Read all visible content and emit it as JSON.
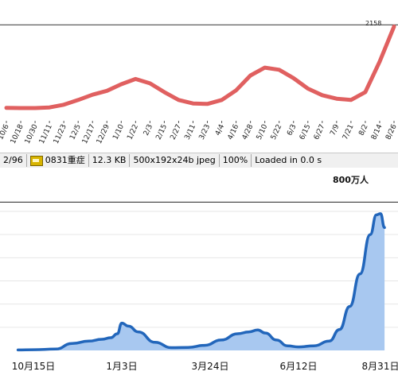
{
  "chart_data": [
    {
      "type": "line",
      "title": "",
      "xlabel": "",
      "ylabel": "",
      "x": [
        "10/6",
        "10/18",
        "10/30",
        "11/11",
        "11/23",
        "12/5",
        "12/17",
        "12/29",
        "1/10",
        "1/22",
        "2/3",
        "2/15",
        "2/27",
        "3/11",
        "3/23",
        "4/4",
        "4/16",
        "4/28",
        "5/10",
        "5/22",
        "6/3",
        "6/15",
        "6/27",
        "7/9",
        "7/21",
        "8/2",
        "8/14",
        "8/26"
      ],
      "series": [
        {
          "values": [
            260,
            255,
            255,
            270,
            330,
            440,
            560,
            650,
            800,
            920,
            820,
            620,
            440,
            360,
            350,
            440,
            660,
            1000,
            1180,
            1130,
            940,
            700,
            550,
            470,
            440,
            620,
            1320,
            2120
          ]
        }
      ],
      "peak_label": "2158",
      "reference_value": 2158,
      "ylim": [
        0,
        2400
      ],
      "color": "#e06060",
      "grid": false,
      "legend": "none"
    },
    {
      "type": "area",
      "title": "",
      "xlabel": "",
      "ylabel": "",
      "x": [
        "10月15日",
        "1月3日",
        "3月24日",
        "6月12日",
        "8月31日"
      ],
      "x_days": [
        0,
        80,
        160,
        240,
        320
      ],
      "points": [
        [
          -14,
          0.02
        ],
        [
          0,
          0.03
        ],
        [
          20,
          0.06
        ],
        [
          35,
          0.3
        ],
        [
          50,
          0.4
        ],
        [
          62,
          0.48
        ],
        [
          70,
          0.55
        ],
        [
          76,
          0.72
        ],
        [
          80,
          1.18
        ],
        [
          86,
          1.05
        ],
        [
          95,
          0.8
        ],
        [
          110,
          0.35
        ],
        [
          125,
          0.12
        ],
        [
          140,
          0.13
        ],
        [
          155,
          0.22
        ],
        [
          170,
          0.45
        ],
        [
          185,
          0.72
        ],
        [
          195,
          0.8
        ],
        [
          203,
          0.88
        ],
        [
          210,
          0.75
        ],
        [
          220,
          0.45
        ],
        [
          230,
          0.2
        ],
        [
          240,
          0.15
        ],
        [
          255,
          0.2
        ],
        [
          270,
          0.4
        ],
        [
          280,
          0.9
        ],
        [
          290,
          1.9
        ],
        [
          300,
          3.3
        ],
        [
          310,
          5.0
        ],
        [
          316,
          5.85
        ],
        [
          320,
          5.9
        ],
        [
          324,
          5.3
        ]
      ],
      "reference_label": "800万人",
      "reference_value": 6.4,
      "line_color": "#2266bb",
      "area_color": "#a8c8f0",
      "ylim": [
        0,
        7.2
      ],
      "grid": true,
      "legend": "none"
    }
  ],
  "status_bar": {
    "index": "2/96",
    "icon": "jpeg-file-icon",
    "filename": "0831重症",
    "filesize": "12.3 KB",
    "dimensions": "500x192x24b jpeg",
    "zoom": "100%",
    "load_time": "Loaded in 0.0 s"
  }
}
